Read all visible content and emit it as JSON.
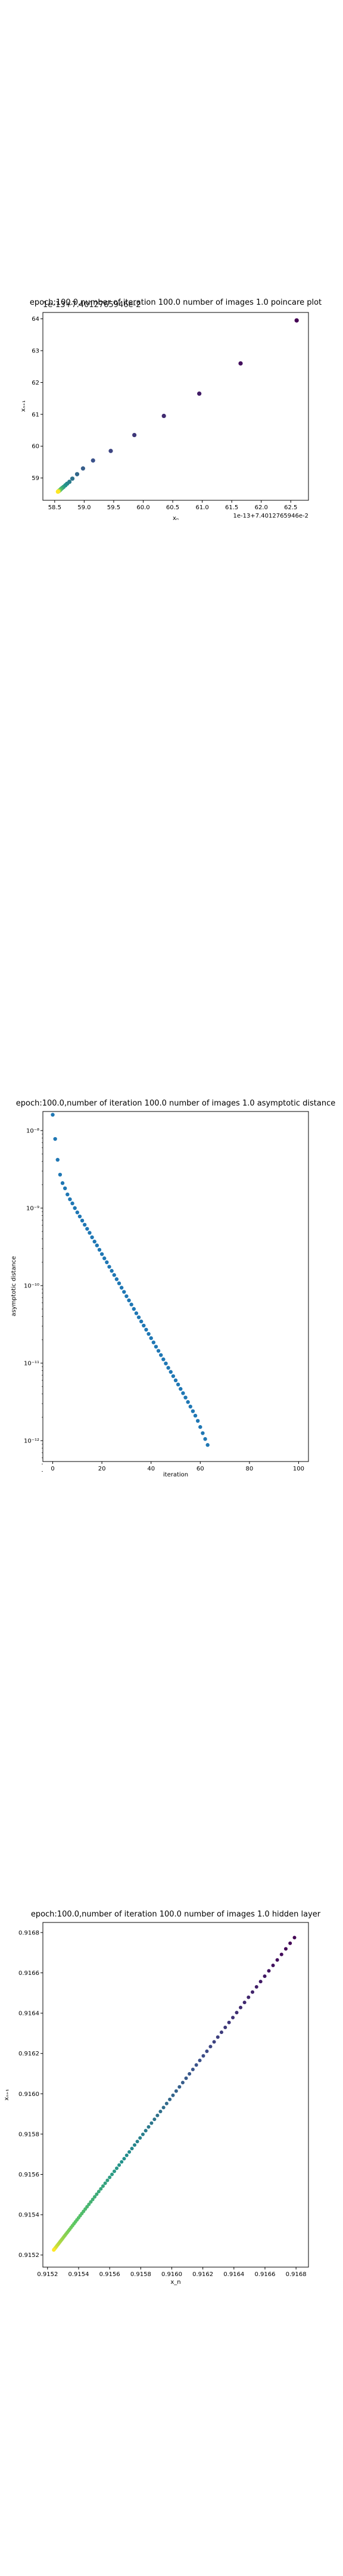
{
  "chart_data": [
    {
      "type": "scatter",
      "title": "epoch:100.0,number of iteration 100.0 number of images 1.0 poincare plot",
      "overlay_text": "1e-13+7.4012765946e-2",
      "xlabel": "xₙ",
      "ylabel": "xₙ₊₁",
      "x_offset_text": "1e-13+7.4012765946e-2",
      "xlim": [
        58.3,
        62.8
      ],
      "ylim": [
        58.3,
        64.2
      ],
      "xticks": [
        "58.5",
        "59.0",
        "59.5",
        "60.0",
        "60.5",
        "61.0",
        "61.5",
        "62.0",
        "62.5"
      ],
      "yticks": [
        "59",
        "60",
        "61",
        "62",
        "63",
        "64"
      ],
      "colormap": [
        "#440154",
        "#3b528b",
        "#21918c",
        "#5ec962",
        "#fde725"
      ],
      "points": [
        [
          62.6,
          63.95
        ],
        [
          61.65,
          62.6
        ],
        [
          60.95,
          61.65
        ],
        [
          60.35,
          60.95
        ],
        [
          59.85,
          60.35
        ],
        [
          59.45,
          59.85
        ],
        [
          59.15,
          59.55
        ],
        [
          58.98,
          59.3
        ],
        [
          58.88,
          59.12
        ],
        [
          58.8,
          58.98
        ],
        [
          58.75,
          58.88
        ],
        [
          58.71,
          58.82
        ],
        [
          58.68,
          58.77
        ],
        [
          58.65,
          58.72
        ],
        [
          58.63,
          58.69
        ],
        [
          58.61,
          58.66
        ],
        [
          58.6,
          58.64
        ],
        [
          58.59,
          58.62
        ],
        [
          58.58,
          58.61
        ],
        [
          58.575,
          58.6
        ],
        [
          58.57,
          58.59
        ],
        [
          58.565,
          58.585
        ],
        [
          58.56,
          58.58
        ],
        [
          58.558,
          58.575
        ],
        [
          58.555,
          58.57
        ]
      ]
    },
    {
      "type": "scatter",
      "title": "epoch:100.0,number of iteration 100.0  number of images 1.0 asymptotic distance",
      "xlabel": "iteration",
      "ylabel": "asymptotic distance",
      "yscale": "log",
      "xlim": [
        -4,
        104
      ],
      "xticks": [
        "0",
        "20",
        "40",
        "60",
        "80",
        "100"
      ],
      "yticks": [
        "10⁻⁸",
        "10⁻⁹",
        "10⁻¹⁰",
        "10⁻¹¹",
        "10⁻¹²"
      ],
      "color": "#1f77b4",
      "points": [
        [
          0,
          1.6e-08
        ],
        [
          1,
          7.8e-09
        ],
        [
          2,
          4.2e-09
        ],
        [
          3,
          2.7e-09
        ],
        [
          4,
          2.1e-09
        ],
        [
          5,
          1.8e-09
        ],
        [
          6,
          1.5e-09
        ],
        [
          7,
          1.3e-09
        ],
        [
          8,
          1.15e-09
        ],
        [
          9,
          1e-09
        ],
        [
          10,
          8.8e-10
        ],
        [
          11,
          7.8e-10
        ],
        [
          12,
          6.9e-10
        ],
        [
          13,
          6.1e-10
        ],
        [
          14,
          5.4e-10
        ],
        [
          15,
          4.8e-10
        ],
        [
          16,
          4.2e-10
        ],
        [
          17,
          3.7e-10
        ],
        [
          18,
          3.3e-10
        ],
        [
          19,
          2.9e-10
        ],
        [
          20,
          2.55e-10
        ],
        [
          21,
          2.25e-10
        ],
        [
          22,
          2e-10
        ],
        [
          23,
          1.75e-10
        ],
        [
          24,
          1.55e-10
        ],
        [
          25,
          1.37e-10
        ],
        [
          26,
          1.21e-10
        ],
        [
          27,
          1.07e-10
        ],
        [
          28,
          9.4e-11
        ],
        [
          29,
          8.3e-11
        ],
        [
          30,
          7.3e-11
        ],
        [
          31,
          6.45e-11
        ],
        [
          32,
          5.7e-11
        ],
        [
          33,
          5e-11
        ],
        [
          34,
          4.4e-11
        ],
        [
          35,
          3.9e-11
        ],
        [
          36,
          3.45e-11
        ],
        [
          37,
          3.05e-11
        ],
        [
          38,
          2.7e-11
        ],
        [
          39,
          2.38e-11
        ],
        [
          40,
          2.1e-11
        ],
        [
          41,
          1.85e-11
        ],
        [
          42,
          1.63e-11
        ],
        [
          43,
          1.44e-11
        ],
        [
          44,
          1.27e-11
        ],
        [
          45,
          1.12e-11
        ],
        [
          46,
          9.9e-12
        ],
        [
          47,
          8.7e-12
        ],
        [
          48,
          7.7e-12
        ],
        [
          49,
          6.8e-12
        ],
        [
          50,
          6e-12
        ],
        [
          51,
          5.3e-12
        ],
        [
          52,
          4.65e-12
        ],
        [
          53,
          4.1e-12
        ],
        [
          54,
          3.6e-12
        ],
        [
          55,
          3.15e-12
        ],
        [
          56,
          2.75e-12
        ],
        [
          57,
          2.4e-12
        ],
        [
          58,
          2.1e-12
        ],
        [
          59,
          1.8e-12
        ],
        [
          60,
          1.5e-12
        ],
        [
          61,
          1.25e-12
        ],
        [
          62,
          1.05e-12
        ],
        [
          63,
          8.8e-13
        ]
      ]
    },
    {
      "type": "scatter",
      "title": "epoch:100.0,number of iteration 100.0  number of images 1.0 hidden layer",
      "xlabel": "x_n",
      "ylabel": "xₙ₊₁",
      "xlim": [
        0.91517,
        0.91688
      ],
      "ylim": [
        0.91514,
        0.91685
      ],
      "xticks": [
        "0.9152",
        "0.9154",
        "0.9156",
        "0.9158",
        "0.9160",
        "0.9162",
        "0.9164",
        "0.9166",
        "0.9168"
      ],
      "yticks": [
        "0.9152",
        "0.9154",
        "0.9156",
        "0.9158",
        "0.9160",
        "0.9162",
        "0.9164",
        "0.9166",
        "0.9168"
      ],
      "colormap": [
        "#440154",
        "#3b528b",
        "#21918c",
        "#5ec962",
        "#fde725"
      ],
      "x_start": 0.91524,
      "x_end": 0.91679,
      "point_count": 100,
      "y_minus_x": -1.5e-05
    }
  ]
}
